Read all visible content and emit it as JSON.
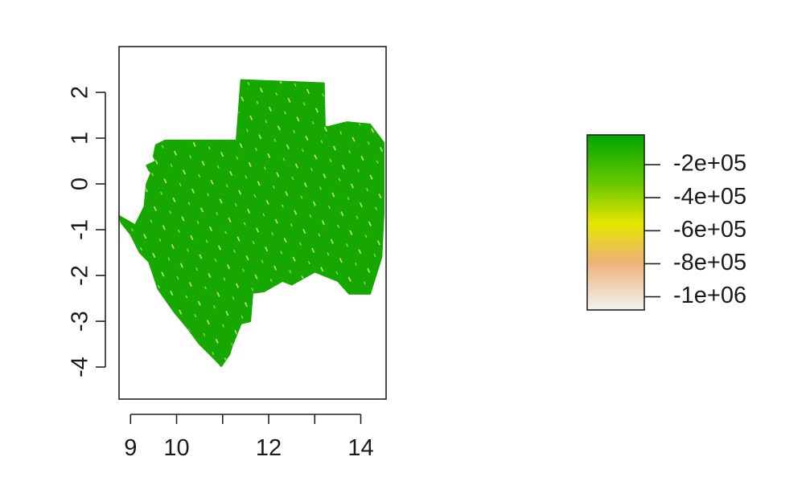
{
  "chart_data": {
    "type": "heatmap",
    "title": "",
    "xlabel": "",
    "ylabel": "",
    "xlim": [
      8.75,
      14.55
    ],
    "ylim": [
      -4.7,
      3.0
    ],
    "x_ticks": [
      {
        "value": 9,
        "label": "9"
      },
      {
        "value": 10,
        "label": "10"
      },
      {
        "value": 11,
        "label": ""
      },
      {
        "value": 12,
        "label": "12"
      },
      {
        "value": 13,
        "label": ""
      },
      {
        "value": 14,
        "label": "14"
      }
    ],
    "y_ticks": [
      {
        "value": 2,
        "label": "2"
      },
      {
        "value": 1,
        "label": "1"
      },
      {
        "value": 0,
        "label": "0"
      },
      {
        "value": -1,
        "label": "-1"
      },
      {
        "value": -2,
        "label": "-2"
      },
      {
        "value": -3,
        "label": "-3"
      },
      {
        "value": -4,
        "label": "-4"
      }
    ],
    "raster_color": "#17a800",
    "region_outline": [
      [
        11.4,
        2.27
      ],
      [
        13.2,
        2.2
      ],
      [
        13.22,
        1.25
      ],
      [
        13.3,
        1.25
      ],
      [
        13.7,
        1.35
      ],
      [
        14.2,
        1.3
      ],
      [
        14.5,
        0.9
      ],
      [
        14.5,
        -0.6
      ],
      [
        14.45,
        -1.6
      ],
      [
        14.2,
        -2.4
      ],
      [
        13.75,
        -2.4
      ],
      [
        13.5,
        -2.12
      ],
      [
        13.0,
        -1.92
      ],
      [
        12.5,
        -2.2
      ],
      [
        12.3,
        -2.12
      ],
      [
        11.9,
        -2.35
      ],
      [
        11.65,
        -2.38
      ],
      [
        11.6,
        -3.0
      ],
      [
        11.4,
        -3.05
      ],
      [
        11.2,
        -3.55
      ],
      [
        11.15,
        -3.72
      ],
      [
        10.97,
        -3.98
      ],
      [
        10.85,
        -3.85
      ],
      [
        10.5,
        -3.5
      ],
      [
        10.2,
        -3.1
      ],
      [
        9.95,
        -2.8
      ],
      [
        9.6,
        -2.3
      ],
      [
        9.4,
        -1.7
      ],
      [
        9.2,
        -1.5
      ],
      [
        9.0,
        -1.1
      ],
      [
        8.8,
        -0.85
      ],
      [
        8.75,
        -0.7
      ],
      [
        9.1,
        -0.9
      ],
      [
        9.3,
        -0.5
      ],
      [
        9.35,
        0.0
      ],
      [
        9.45,
        0.25
      ],
      [
        9.4,
        0.3
      ],
      [
        9.35,
        0.4
      ],
      [
        9.55,
        0.5
      ],
      [
        9.5,
        0.6
      ],
      [
        9.55,
        0.85
      ],
      [
        9.75,
        0.95
      ],
      [
        10.05,
        0.95
      ],
      [
        11.3,
        0.95
      ],
      [
        11.4,
        2.27
      ]
    ],
    "colorbar": {
      "ticks": [
        {
          "value": -200000,
          "label": "-2e+05"
        },
        {
          "value": -400000,
          "label": "-4e+05"
        },
        {
          "value": -600000,
          "label": "-6e+05"
        },
        {
          "value": -800000,
          "label": "-8e+05"
        },
        {
          "value": -1000000,
          "label": "-1e+06"
        }
      ],
      "range": [
        -1080000,
        -20000
      ],
      "color_stops": [
        {
          "value": -20000,
          "color": "#00a600"
        },
        {
          "value": -300000,
          "color": "#63c600"
        },
        {
          "value": -560000,
          "color": "#e6e600"
        },
        {
          "value": -790000,
          "color": "#ecb176"
        },
        {
          "value": -1080000,
          "color": "#f2f2f2"
        }
      ]
    }
  }
}
